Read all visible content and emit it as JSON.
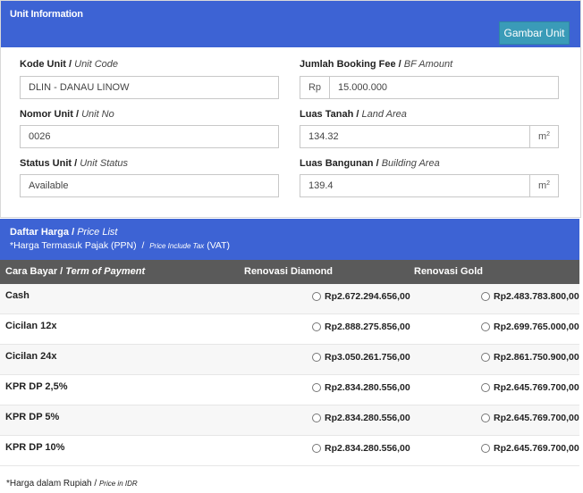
{
  "unit_info": {
    "title": "Unit Information",
    "gambar_button": "Gambar Unit",
    "kode_unit": {
      "label": "Kode Unit",
      "label_en": "Unit Code",
      "value": "DLIN - DANAU LINOW"
    },
    "booking_fee": {
      "label": "Jumlah Booking Fee",
      "label_en": "BF Amount",
      "prefix": "Rp",
      "value": "15.000.000"
    },
    "nomor_unit": {
      "label": "Nomor Unit",
      "label_en": "Unit No",
      "value": "0026"
    },
    "luas_tanah": {
      "label": "Luas Tanah",
      "label_en": "Land Area",
      "value": "134.32",
      "unit": "m",
      "unit_sup": "2"
    },
    "status_unit": {
      "label": "Status Unit",
      "label_en": "Unit Status",
      "value": "Available"
    },
    "luas_bangunan": {
      "label": "Luas Bangunan",
      "label_en": "Building Area",
      "value": "139.4",
      "unit": "m",
      "unit_sup": "2"
    }
  },
  "price_list": {
    "title": "Daftar Harga",
    "title_en": "Price List",
    "note": "*Harga Termasuk Pajak (PPN)",
    "note_en": "Price Include Tax",
    "note_suffix": "(VAT)",
    "columns": {
      "term": "Cara Bayar",
      "term_en": "Term of Payment",
      "diamond": "Renovasi Diamond",
      "gold": "Renovasi Gold"
    },
    "rows": [
      {
        "term": "Cash",
        "diamond": "Rp2.672.294.656,00",
        "gold": "Rp2.483.783.800,00"
      },
      {
        "term": "Cicilan 12x",
        "diamond": "Rp2.888.275.856,00",
        "gold": "Rp2.699.765.000,00"
      },
      {
        "term": "Cicilan 24x",
        "diamond": "Rp3.050.261.756,00",
        "gold": "Rp2.861.750.900,00"
      },
      {
        "term": "KPR DP 2,5%",
        "diamond": "Rp2.834.280.556,00",
        "gold": "Rp2.645.769.700,00"
      },
      {
        "term": "KPR DP 5%",
        "diamond": "Rp2.834.280.556,00",
        "gold": "Rp2.645.769.700,00"
      },
      {
        "term": "KPR DP 10%",
        "diamond": "Rp2.834.280.556,00",
        "gold": "Rp2.645.769.700,00"
      }
    ],
    "footnote": "*Harga dalam Rupiah",
    "footnote_en": "Price in IDR"
  }
}
